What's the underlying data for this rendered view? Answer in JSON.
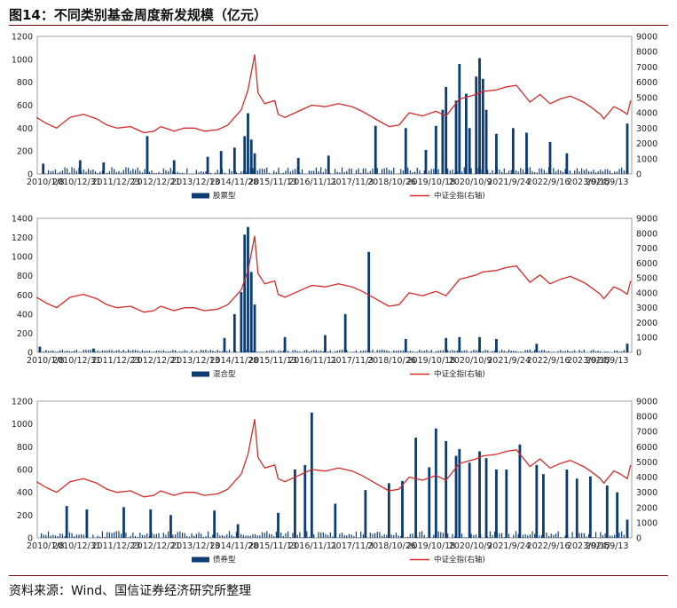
{
  "figure": {
    "title": "图14：不同类别基金周度新发规模（亿元）",
    "source": "资料来源：Wind、国信证券经济研究所整理"
  },
  "colors": {
    "bar": "#0d3c73",
    "line": "#d42a2a",
    "axis": "#888888"
  },
  "chart_data": [
    {
      "type": "bar",
      "title": "",
      "legend": {
        "placement": "bottom",
        "entries": [
          "股票型",
          "中证全指(右轴)"
        ]
      },
      "x_ticks": [
        "2010/1/8",
        "2010/12/31",
        "2011/12/23",
        "2012/12/21",
        "2013/12/13",
        "2014/11/28",
        "2015/11/13",
        "2016/11/11",
        "2017/11/3",
        "2018/10/26",
        "2019/10/18",
        "2020/10/9",
        "2021/9/24",
        "2022/9/16",
        "2023/9/15",
        "2024/9/13"
      ],
      "x_range": [
        "2010/1/8",
        "2024/10/11"
      ],
      "y_left": {
        "min": 0,
        "max": 1200,
        "step": 200
      },
      "y_right": {
        "min": 0,
        "max": 9000,
        "step": 1000
      },
      "series": [
        {
          "name": "股票型",
          "type": "bar",
          "axis": "left",
          "x": [
            "2010/3",
            "2011/2",
            "2011/9",
            "2012/10",
            "2013/6",
            "2014/4",
            "2014/8",
            "2014/12",
            "2015/3",
            "2015/4",
            "2015/5",
            "2015/6",
            "2016/7",
            "2017/4",
            "2018/6",
            "2019/3",
            "2019/9",
            "2019/12",
            "2020/2",
            "2020/3",
            "2020/6",
            "2020/7",
            "2020/9",
            "2020/10",
            "2020/12",
            "2021/1",
            "2021/2",
            "2021/3",
            "2021/6",
            "2021/11",
            "2022/3",
            "2022/10",
            "2023/3",
            "2024/9"
          ],
          "values": [
            90,
            120,
            100,
            330,
            120,
            150,
            200,
            230,
            330,
            530,
            300,
            180,
            140,
            160,
            420,
            400,
            210,
            420,
            560,
            760,
            640,
            960,
            700,
            400,
            850,
            1010,
            830,
            560,
            350,
            400,
            360,
            280,
            180,
            440
          ]
        }
      ]
    },
    {
      "type": "bar",
      "title": "",
      "legend": {
        "placement": "bottom",
        "entries": [
          "混合型",
          "中证全指(右轴)"
        ]
      },
      "x_ticks": [
        "2010/1/8",
        "2010/12/31",
        "2011/12/23",
        "2012/12/21",
        "2013/12/13",
        "2014/11/28",
        "2015/11/13",
        "2016/11/11",
        "2017/11/3",
        "2018/10/26",
        "2019/10/18",
        "2020/10/9",
        "2021/9/24",
        "2022/9/16",
        "2023/9/15",
        "2024/9/13"
      ],
      "x_range": [
        "2010/1/8",
        "2024/10/11"
      ],
      "y_left": {
        "min": 0,
        "max": 1400,
        "step": 200
      },
      "y_right": {
        "min": 0,
        "max": 9000,
        "step": 1000
      },
      "series": [
        {
          "name": "混合型",
          "type": "bar",
          "axis": "left",
          "x": [
            "2010/2",
            "2011/6",
            "2014/9",
            "2014/12",
            "2015/2",
            "2015/3",
            "2015/4",
            "2015/5",
            "2015/6",
            "2016/3",
            "2017/3",
            "2017/9",
            "2018/4",
            "2019/3",
            "2020/3",
            "2020/7",
            "2021/1",
            "2021/6",
            "2022/6",
            "2024/9"
          ],
          "values": [
            60,
            40,
            150,
            400,
            630,
            1230,
            1310,
            840,
            500,
            160,
            180,
            400,
            1050,
            140,
            150,
            160,
            160,
            140,
            90,
            90
          ]
        }
      ]
    },
    {
      "type": "bar",
      "title": "",
      "legend": {
        "placement": "bottom",
        "entries": [
          "债券型",
          "中证全指(右轴)"
        ]
      },
      "x_ticks": [
        "2010/1/8",
        "2010/12/31",
        "2011/12/23",
        "2012/12/21",
        "2013/12/13",
        "2014/11/28",
        "2015/11/13",
        "2016/11/11",
        "2017/11/3",
        "2018/10/26",
        "2019/10/18",
        "2020/10/9",
        "2021/9/24",
        "2022/9/16",
        "2023/9/15",
        "2024/9/13"
      ],
      "x_range": [
        "2010/1/8",
        "2024/10/11"
      ],
      "y_left": {
        "min": 0,
        "max": 1200,
        "step": 200
      },
      "y_right": {
        "min": 0,
        "max": 9000,
        "step": 1000
      },
      "series": [
        {
          "name": "债券型",
          "type": "bar",
          "axis": "left",
          "x": [
            "2010/10",
            "2011/4",
            "2012/3",
            "2012/11",
            "2013/5",
            "2014/6",
            "2015/1",
            "2016/1",
            "2016/6",
            "2016/9",
            "2016/11",
            "2017/6",
            "2018/3",
            "2018/10",
            "2019/2",
            "2019/6",
            "2019/10",
            "2019/12",
            "2020/3",
            "2020/6",
            "2020/7",
            "2020/10",
            "2021/1",
            "2021/3",
            "2021/6",
            "2021/9",
            "2022/1",
            "2022/6",
            "2022/8",
            "2023/3",
            "2023/6",
            "2023/10",
            "2024/3",
            "2024/6",
            "2024/9"
          ],
          "values": [
            280,
            250,
            270,
            250,
            200,
            240,
            120,
            220,
            600,
            640,
            1100,
            300,
            420,
            480,
            500,
            880,
            620,
            960,
            850,
            720,
            780,
            660,
            760,
            700,
            600,
            600,
            820,
            640,
            560,
            600,
            520,
            540,
            460,
            400,
            160
          ]
        }
      ]
    },
    {
      "type": "line",
      "name": "中证全指(右轴)",
      "axis": "right",
      "x": [
        "2010/1",
        "2010/4",
        "2010/7",
        "2010/11",
        "2011/3",
        "2011/7",
        "2011/10",
        "2012/1",
        "2012/5",
        "2012/9",
        "2012/12",
        "2013/2",
        "2013/6",
        "2013/9",
        "2013/12",
        "2014/3",
        "2014/7",
        "2014/10",
        "2014/12",
        "2015/2",
        "2015/4",
        "2015/6",
        "2015/7",
        "2015/9",
        "2015/12",
        "2016/1",
        "2016/3",
        "2016/7",
        "2016/11",
        "2017/3",
        "2017/7",
        "2017/11",
        "2018/2",
        "2018/6",
        "2018/10",
        "2019/1",
        "2019/4",
        "2019/8",
        "2019/12",
        "2020/3",
        "2020/7",
        "2020/12",
        "2021/2",
        "2021/6",
        "2021/9",
        "2021/12",
        "2022/4",
        "2022/7",
        "2022/10",
        "2023/1",
        "2023/4",
        "2023/8",
        "2023/10",
        "2024/1",
        "2024/2",
        "2024/5",
        "2024/7",
        "2024/9",
        "2024/10"
      ],
      "values": [
        3700,
        3300,
        3000,
        3700,
        3900,
        3600,
        3200,
        3000,
        3100,
        2700,
        2800,
        3100,
        2800,
        3000,
        3000,
        2800,
        2900,
        3200,
        3700,
        4200,
        5500,
        7800,
        5300,
        4600,
        4800,
        3900,
        3700,
        4100,
        4500,
        4400,
        4600,
        4400,
        4100,
        3600,
        3100,
        3200,
        4000,
        3800,
        4100,
        3800,
        4900,
        5200,
        5400,
        5500,
        5700,
        5800,
        4700,
        5200,
        4600,
        4900,
        5100,
        4700,
        4400,
        3900,
        3600,
        4400,
        4200,
        3900,
        4800
      ]
    }
  ]
}
